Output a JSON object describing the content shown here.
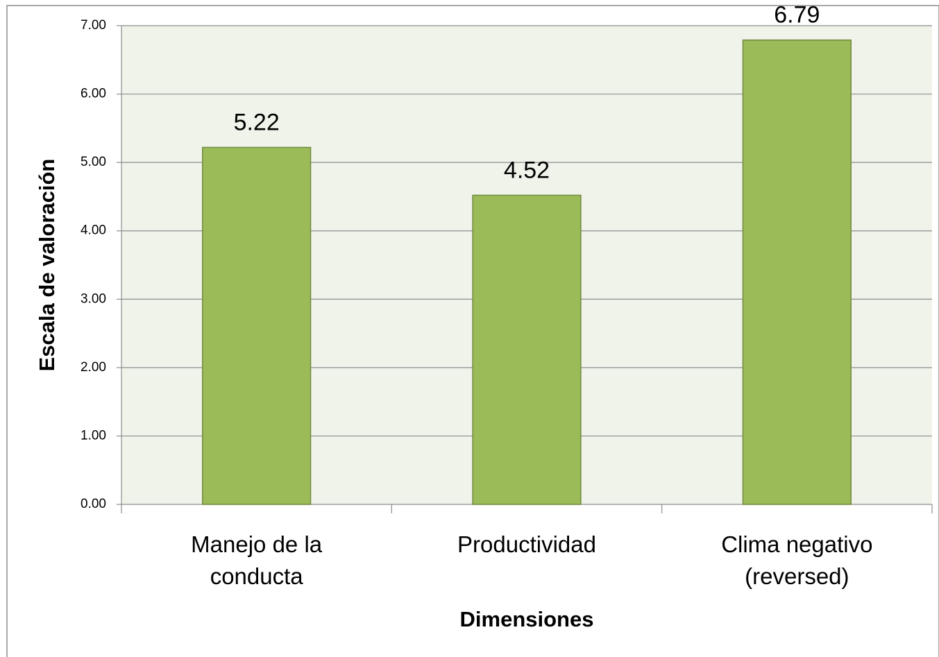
{
  "chart_data": {
    "type": "bar",
    "categories": [
      "Manejo de la conducta",
      "Productividad",
      "Clima negativo (reversed)"
    ],
    "values": [
      5.22,
      4.52,
      6.79
    ],
    "color": "#9bbb59",
    "xlabel": "Dimensiones",
    "ylabel": "Escala de valoración",
    "ylim": [
      0,
      7
    ],
    "yticks": [
      {
        "value": 0,
        "label": "0.00"
      },
      {
        "value": 1,
        "label": "1.00"
      },
      {
        "value": 2,
        "label": "2.00"
      },
      {
        "value": 3,
        "label": "3.00"
      },
      {
        "value": 4,
        "label": "4.00"
      },
      {
        "value": 5,
        "label": "5.00"
      },
      {
        "value": 6,
        "label": "6.00"
      },
      {
        "value": 7,
        "label": "7.00"
      }
    ],
    "grid": true
  }
}
